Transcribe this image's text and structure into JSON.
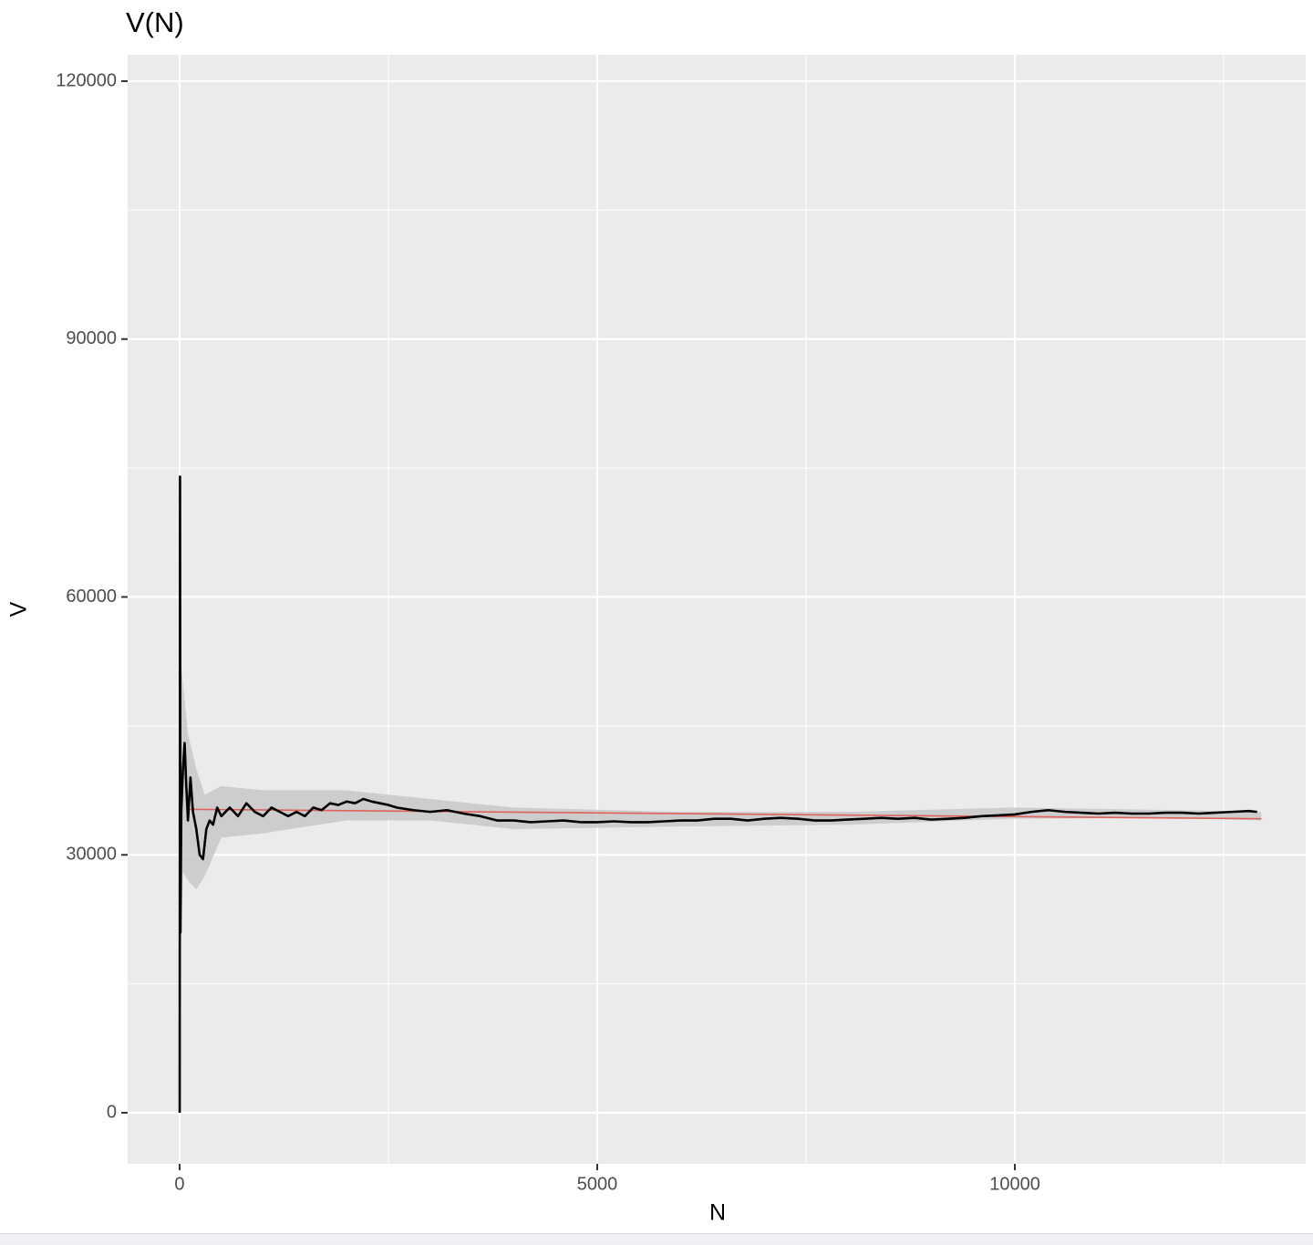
{
  "chart_data": {
    "type": "line",
    "title": "V(N)",
    "x_label": "N",
    "y_label": "V",
    "xlim": [
      -622,
      13482
    ],
    "ylim": [
      -5942,
      123077
    ],
    "xticks": [
      0,
      5000,
      10000
    ],
    "yticks": [
      0,
      30000,
      60000,
      90000,
      120000
    ],
    "grid": true,
    "minor_grid": true,
    "band": {
      "color": "#c8c8c8",
      "x": [
        20,
        40,
        100,
        200,
        300,
        500,
        1000,
        2000,
        3000,
        4000,
        6000,
        8000,
        10000,
        12000,
        12950
      ],
      "lower": [
        20000,
        28000,
        27000,
        26000,
        27500,
        32000,
        32500,
        34000,
        34000,
        33000,
        33300,
        33500,
        34200,
        34300,
        34000
      ],
      "upper": [
        52000,
        50000,
        44000,
        40000,
        37000,
        38000,
        37500,
        37500,
        36500,
        35500,
        35000,
        35000,
        35500,
        35200,
        35000
      ]
    },
    "series": [
      {
        "color": "#000000",
        "x": [
          1,
          5,
          10,
          20,
          40,
          60,
          80,
          100,
          130,
          160,
          200,
          240,
          280,
          320,
          360,
          400,
          450,
          500,
          600,
          700,
          800,
          900,
          1000,
          1100,
          1200,
          1300,
          1400,
          1500,
          1600,
          1700,
          1800,
          1900,
          2000,
          2100,
          2200,
          2300,
          2400,
          2500,
          2600,
          2800,
          3000,
          3200,
          3400,
          3600,
          3800,
          4000,
          4200,
          4400,
          4600,
          4800,
          5000,
          5200,
          5400,
          5600,
          5800,
          6000,
          6200,
          6400,
          6600,
          6800,
          7000,
          7200,
          7400,
          7600,
          7800,
          8000,
          8200,
          8400,
          8600,
          8800,
          9000,
          9200,
          9400,
          9600,
          9800,
          10000,
          10200,
          10400,
          10600,
          10800,
          11000,
          11200,
          11400,
          11600,
          11800,
          12000,
          12200,
          12400,
          12600,
          12800,
          12900
        ],
        "values": [
          0,
          74000,
          21000,
          35000,
          40000,
          43000,
          38000,
          34000,
          39000,
          35000,
          33000,
          30000,
          29500,
          33000,
          34000,
          33500,
          35500,
          34500,
          35500,
          34500,
          36000,
          35000,
          34500,
          35500,
          35000,
          34500,
          35000,
          34500,
          35500,
          35200,
          36000,
          35800,
          36200,
          36000,
          36500,
          36200,
          36000,
          35800,
          35500,
          35200,
          35000,
          35200,
          34800,
          34500,
          34000,
          34000,
          33800,
          33900,
          34000,
          33800,
          33800,
          33900,
          33800,
          33800,
          33900,
          34000,
          34000,
          34200,
          34200,
          34000,
          34200,
          34300,
          34200,
          34000,
          34000,
          34100,
          34200,
          34300,
          34200,
          34300,
          34100,
          34200,
          34300,
          34500,
          34600,
          34700,
          35000,
          35200,
          35000,
          34900,
          34800,
          34900,
          34800,
          34800,
          34900,
          34900,
          34800,
          34900,
          35000,
          35100,
          35000
        ]
      },
      {
        "color": "#e0625a",
        "x": [
          80,
          12950
        ],
        "values": [
          35300,
          34200
        ]
      }
    ]
  }
}
